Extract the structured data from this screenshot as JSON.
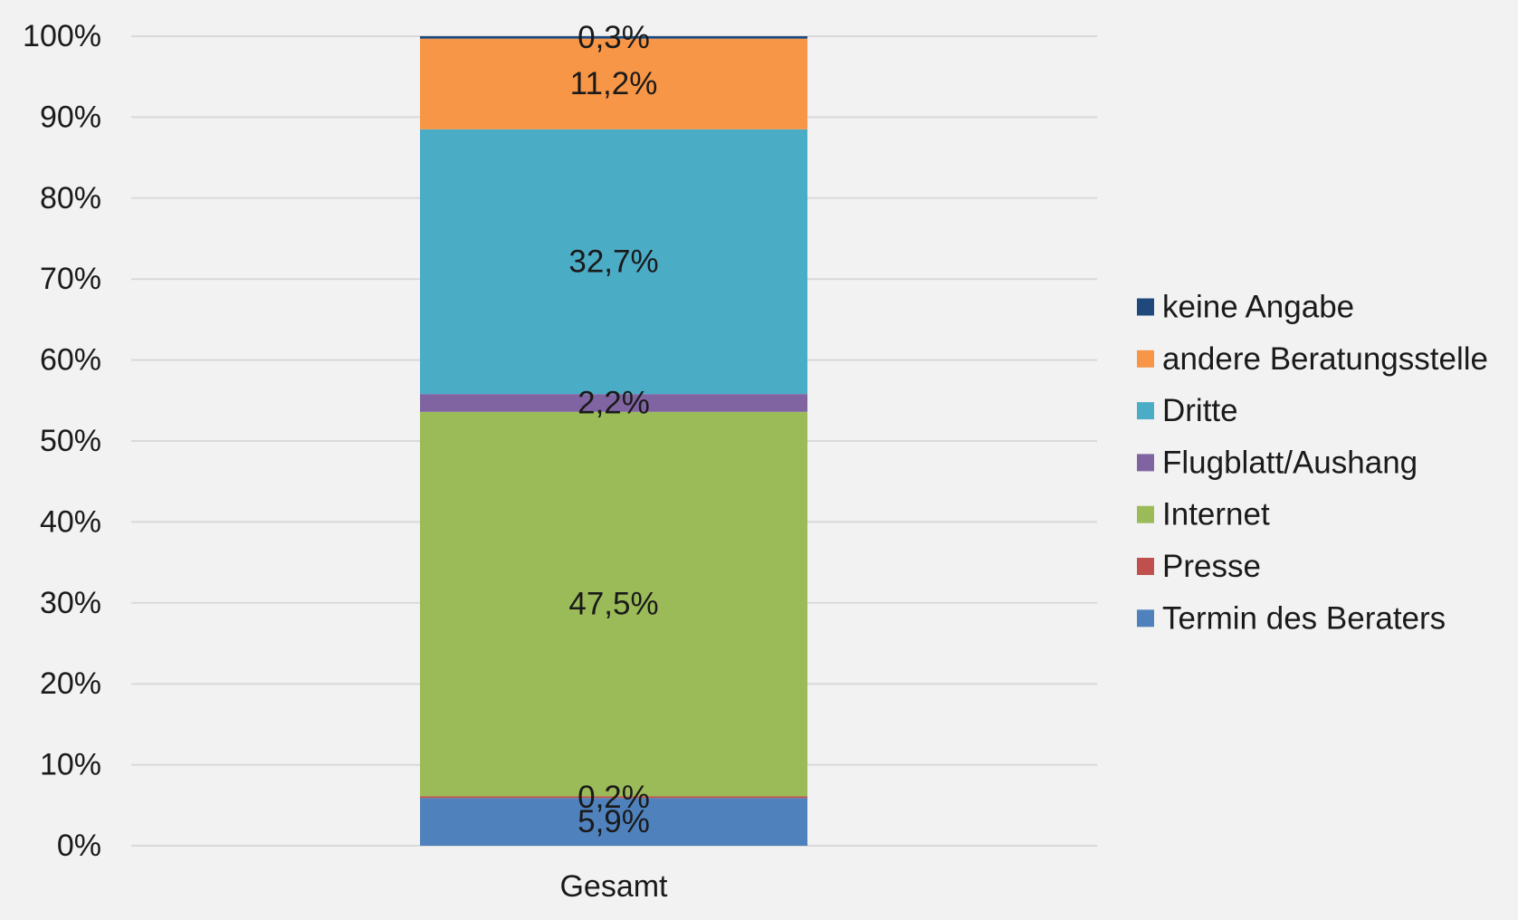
{
  "chart_data": {
    "type": "bar",
    "stacked": true,
    "percent_stacked": true,
    "categories": [
      "Gesamt"
    ],
    "series": [
      {
        "name": "Termin des Beraters",
        "values": [
          5.9
        ],
        "label": "5,9%",
        "color": "#4f81bd"
      },
      {
        "name": "Presse",
        "values": [
          0.2
        ],
        "label": "0,2%",
        "color": "#c0504d"
      },
      {
        "name": "Internet",
        "values": [
          47.5
        ],
        "label": "47,5%",
        "color": "#9bbb59"
      },
      {
        "name": "Flugblatt/Aushang",
        "values": [
          2.2
        ],
        "label": "2,2%",
        "color": "#8064a2"
      },
      {
        "name": "Dritte",
        "values": [
          32.7
        ],
        "label": "32,7%",
        "color": "#4bacc6"
      },
      {
        "name": "andere Beratungsstelle",
        "values": [
          11.2
        ],
        "label": "11,2%",
        "color": "#f79646"
      },
      {
        "name": "keine Angabe",
        "values": [
          0.3
        ],
        "label": "0,3%",
        "color": "#1f497d"
      }
    ],
    "y_ticks": [
      "0%",
      "10%",
      "20%",
      "30%",
      "40%",
      "50%",
      "60%",
      "70%",
      "80%",
      "90%",
      "100%"
    ],
    "ylim": [
      0,
      100
    ],
    "grid": true,
    "legend_position": "right",
    "legend_order": "reverse",
    "title": "",
    "xlabel": "",
    "ylabel": ""
  }
}
